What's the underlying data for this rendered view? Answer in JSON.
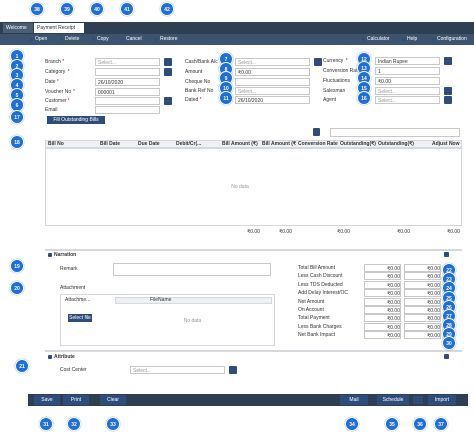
{
  "tabs": [
    "Welcome",
    "Payment Receipt"
  ],
  "toolbar": {
    "left": [
      "Open",
      "Delete",
      "Copy",
      "Cancel",
      "Restore"
    ],
    "right": [
      "Calculator",
      "Help",
      "Configuration"
    ]
  },
  "required_mark": "*",
  "form": {
    "left": [
      {
        "label": "Branch",
        "required": true,
        "value": "Select..."
      },
      {
        "label": "Category",
        "required": true,
        "value": ""
      },
      {
        "label": "Date",
        "required": true,
        "value": "26/10/2020"
      },
      {
        "label": "Voucher No",
        "required": true,
        "value": "000001"
      },
      {
        "label": "Customer",
        "required": true,
        "value": ""
      },
      {
        "label": "Email",
        "required": false,
        "value": ""
      }
    ],
    "fill_button": "Fill Outstanding Bills",
    "middle": [
      {
        "label": "Cash/Bank A/c",
        "required": false,
        "value": "Select..."
      },
      {
        "label": "Amount",
        "required": false,
        "value": "₹0.00"
      },
      {
        "label": "Cheque No",
        "required": false,
        "value": ""
      },
      {
        "label": "Bank Ref No",
        "required": false,
        "value": "Select..."
      },
      {
        "label": "Dated",
        "required": true,
        "value": "26/10/2020"
      }
    ],
    "right": [
      {
        "label": "Currency",
        "required": true,
        "value": "Indian Rupee"
      },
      {
        "label": "Conversion Rate",
        "required": false,
        "value": "1"
      },
      {
        "label": "Fluctuations",
        "required": false,
        "value": "₹0.00"
      },
      {
        "label": "Salesman",
        "required": false,
        "value": "Select..."
      },
      {
        "label": "Agent",
        "required": false,
        "value": "Select..."
      }
    ]
  },
  "grid": {
    "columns": [
      "Bill No",
      "Bill Date",
      "Due Date",
      "Debit/Cr(...",
      "Bill Amount (₹)",
      "Bill Amount (₹)",
      "Conversion Rate",
      "Outstanding(₹)",
      "Outstanding(₹)",
      "Adjust Now"
    ],
    "empty": "No data",
    "footer": [
      "₹0.00",
      "₹0.00",
      "₹0.00",
      "₹0.00",
      "₹0.00"
    ]
  },
  "narration": {
    "title": "Narration",
    "remark": "Remark",
    "attachment": "Attachment",
    "attach_columns": [
      "Attachme...",
      "FileName"
    ],
    "select_file": "Select file",
    "empty": "No data"
  },
  "totals": [
    {
      "label": "Total Bill Amount",
      "values": [
        "₹0.00",
        "₹0.00"
      ]
    },
    {
      "label": "Less Cash Discount",
      "values": [
        "₹0.00",
        "₹0.00"
      ]
    },
    {
      "label": "Less TDS Deducted",
      "values": [
        "₹0.00",
        "₹0.00"
      ]
    },
    {
      "label": "Add Delay Interest/OC",
      "values": [
        "₹0.00",
        "₹0.00"
      ]
    },
    {
      "label": "Net Amount",
      "values": [
        "₹0.00",
        "₹0.00"
      ]
    },
    {
      "label": "On Account",
      "values": [
        "₹0.00",
        "₹0.00"
      ]
    },
    {
      "label": "Total Payment",
      "values": [
        "₹0.00",
        "₹0.00"
      ]
    },
    {
      "label": "Less Bank Charges",
      "values": [
        "₹0.00",
        "₹0.00"
      ]
    },
    {
      "label": "Net Bank Impact",
      "values": [
        "₹0.00",
        "₹0.00"
      ]
    }
  ],
  "attribute": {
    "title": "Attribute",
    "cost_center": "Cost Center",
    "value": "Select..."
  },
  "footer_buttons": {
    "left": [
      "Save",
      "Print",
      "Clear"
    ],
    "right": [
      "Mail",
      "Schedule",
      "Import"
    ]
  },
  "callouts": [
    "38",
    "39",
    "40",
    "41",
    "42",
    "1",
    "2",
    "3",
    "4",
    "5",
    "6",
    "17",
    "18",
    "7",
    "8",
    "9",
    "10",
    "11",
    "12",
    "13",
    "14",
    "15",
    "16",
    "19",
    "20",
    "22",
    "23",
    "24",
    "25",
    "26",
    "27",
    "28",
    "29",
    "30",
    "21",
    "31",
    "32",
    "33",
    "34",
    "35",
    "36",
    "37"
  ]
}
